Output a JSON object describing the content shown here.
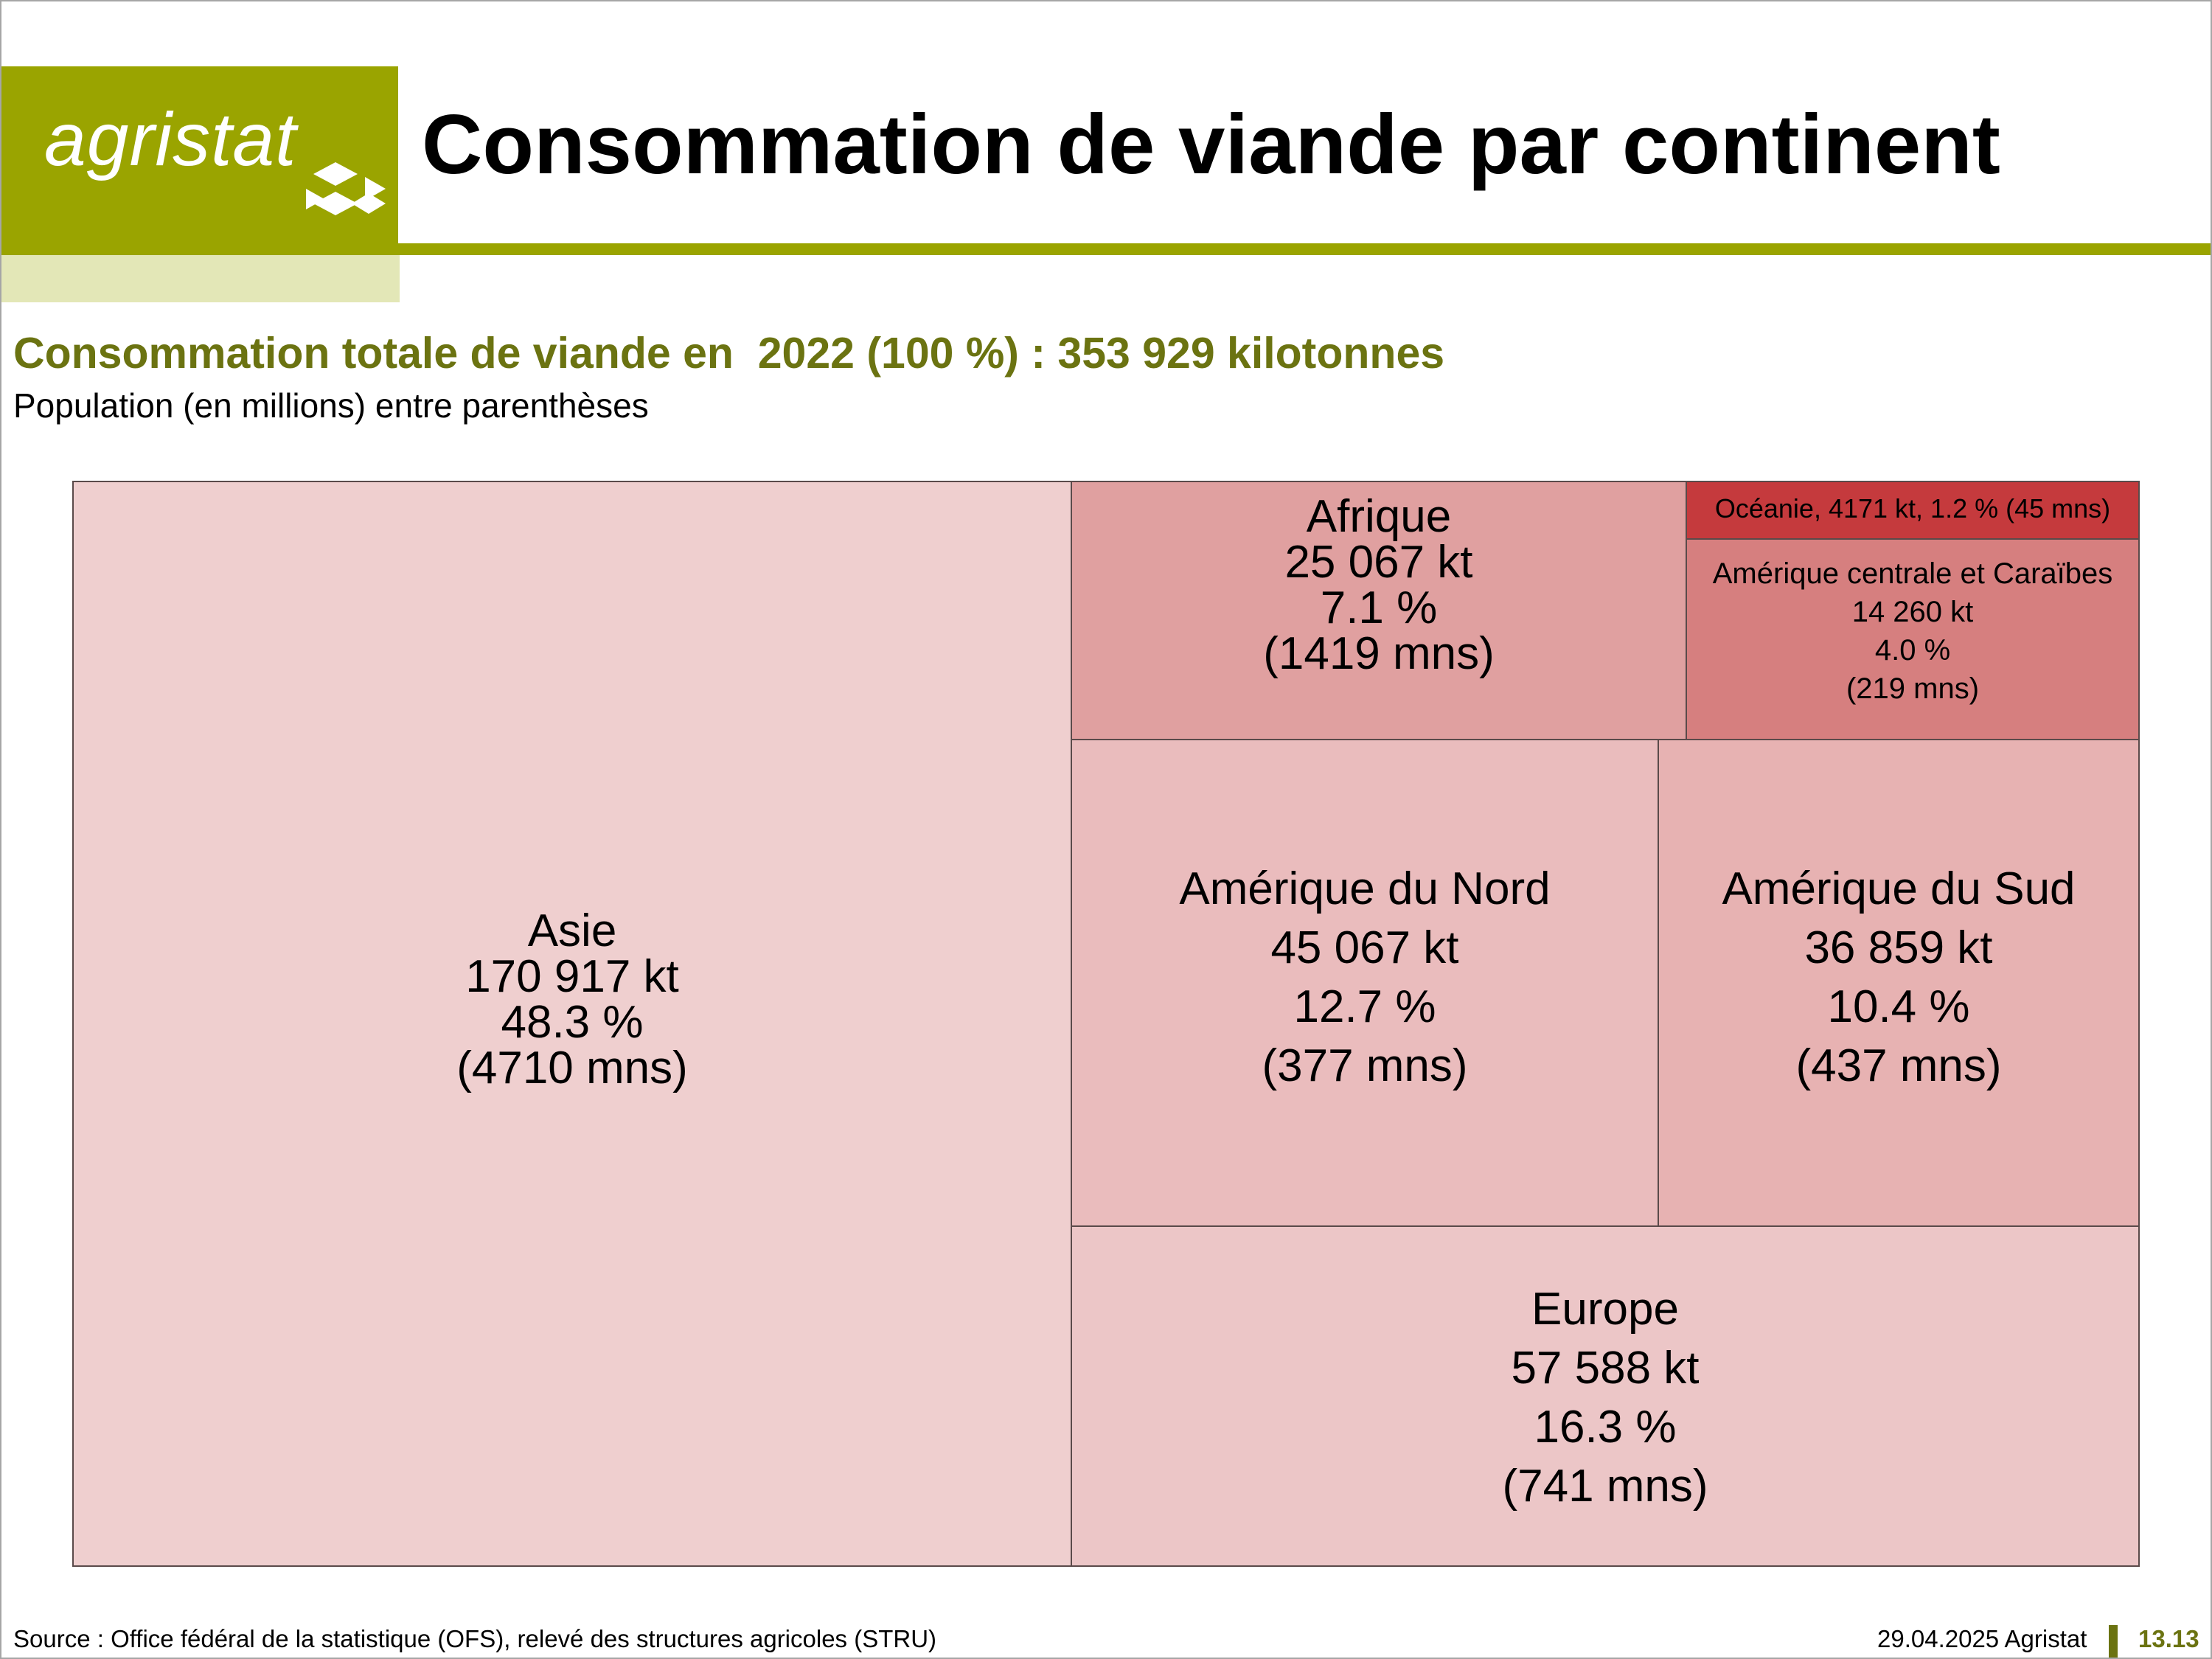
{
  "header": {
    "logo_text": "agristat",
    "title": "Consommation de viande par continent",
    "accent_color": "#9aa400"
  },
  "subtitle": "Consommation totale de viande en  2022 (100 %) : 353 929 kilotonnes",
  "note": "Population (en millions) entre parenthèses",
  "chart_data": {
    "type": "treemap",
    "total_kt": 353929,
    "year": 2022,
    "items": [
      {
        "name": "Asie",
        "kt_label": "170 917 kt",
        "value_kt": 170917,
        "pct_label": "48.3 %",
        "pop_label": "(4710 mns)",
        "population_mns": 4710,
        "color": "#efcfcf"
      },
      {
        "name": "Europe",
        "kt_label": "57 588 kt",
        "value_kt": 57588,
        "pct_label": "16.3 %",
        "pop_label": "(741 mns)",
        "population_mns": 741,
        "color": "#ecc6c7"
      },
      {
        "name": "Amérique du Nord",
        "kt_label": "45 067 kt",
        "value_kt": 45067,
        "pct_label": "12.7 %",
        "pop_label": "(377 mns)",
        "population_mns": 377,
        "color": "#eabcbd"
      },
      {
        "name": "Amérique du Sud",
        "kt_label": "36 859 kt",
        "value_kt": 36859,
        "pct_label": "10.4 %",
        "pop_label": "(437 mns)",
        "population_mns": 437,
        "color": "#e7b2b2"
      },
      {
        "name": "Afrique",
        "kt_label": "25 067 kt",
        "value_kt": 25067,
        "pct_label": "7.1 %",
        "pop_label": "(1419 mns)",
        "population_mns": 1419,
        "color": "#e0a0a0"
      },
      {
        "name": "Amérique centrale et Caraïbes",
        "kt_label": "14 260 kt",
        "value_kt": 14260,
        "pct_label": "4.0 %",
        "pop_label": "(219 mns)",
        "population_mns": 219,
        "color": "#d67f7f"
      },
      {
        "name": "Océanie",
        "single_label": "Océanie, 4171 kt, 1.2 % (45 mns)",
        "value_kt": 4171,
        "population_mns": 45,
        "color": "#c53a3d"
      }
    ]
  },
  "footer": {
    "source": "Source : Office fédéral de la statistique (OFS), relevé des structures agricoles (STRU)",
    "date": "29.04.2025 Agristat",
    "page": "13.13"
  }
}
